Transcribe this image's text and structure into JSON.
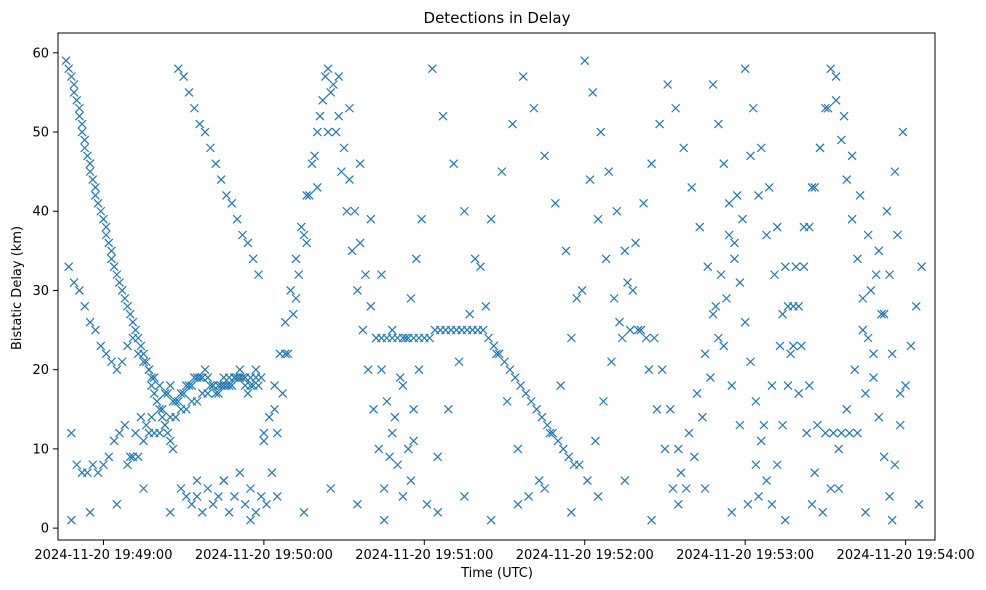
{
  "chart_data": {
    "type": "scatter",
    "title": "Detections in Delay",
    "xlabel": "Time (UTC)",
    "ylabel": "Bistatic Delay (km)",
    "x_ticks": [
      "2024-11-20 19:49:00",
      "2024-11-20 19:50:00",
      "2024-11-20 19:51:00",
      "2024-11-20 19:52:00",
      "2024-11-20 19:53:00",
      "2024-11-20 19:54:00"
    ],
    "x_tick_values": [
      0,
      60,
      120,
      180,
      240,
      300
    ],
    "xlim": [
      "2024-11-20 19:48:43",
      "2024-11-20 19:54:12"
    ],
    "xlim_seconds_from_first_tick": [
      -17,
      311
    ],
    "y_ticks": [
      0,
      10,
      20,
      30,
      40,
      50,
      60
    ],
    "ylim": [
      -1.5,
      62.5
    ],
    "marker": "x",
    "color": "#1f77b4",
    "grid": false,
    "series": [
      {
        "x_seconds_from_first_tick": [
          -14,
          -13,
          -12,
          -11,
          -11,
          -10,
          -9,
          -9,
          -8,
          -8,
          -7,
          -7,
          -6,
          -5,
          -5,
          -4,
          -3,
          -3,
          -2,
          -1,
          0,
          1,
          1,
          2,
          3,
          3,
          4,
          5,
          6,
          7,
          8,
          9,
          10,
          11,
          12,
          13,
          14,
          15,
          16,
          17,
          18,
          18,
          19,
          20,
          21,
          22,
          23,
          24,
          25,
          26,
          -12,
          -10,
          -8,
          -6,
          -4,
          -2,
          0,
          2,
          4,
          6,
          8,
          10,
          12,
          14,
          16,
          18,
          20,
          22,
          24,
          26,
          -13,
          -11,
          -9,
          -7,
          -5,
          -3,
          -1,
          1,
          3,
          5,
          7,
          9,
          11,
          13,
          15,
          17,
          19,
          21,
          23,
          25,
          27,
          28,
          29,
          30,
          31,
          32,
          33,
          34,
          35,
          36,
          37,
          38,
          39,
          40,
          41,
          42,
          43,
          44,
          45,
          46,
          47,
          48,
          49,
          50,
          51,
          52,
          53,
          54,
          55,
          56,
          57,
          58,
          59,
          28,
          30,
          32,
          34,
          36,
          38,
          40,
          42,
          44,
          46,
          48,
          50,
          52,
          54,
          56,
          58,
          29,
          31,
          33,
          35,
          37,
          39,
          41,
          43,
          45,
          47,
          49,
          51,
          53,
          55,
          57,
          59,
          60,
          62,
          64,
          66,
          68,
          70,
          72,
          74,
          76,
          78,
          80,
          82,
          84,
          86,
          88,
          90,
          92,
          94,
          96,
          98,
          100,
          102,
          104,
          106,
          108,
          110,
          112,
          114,
          116,
          118,
          61,
          63,
          65,
          67,
          69,
          71,
          73,
          75,
          77,
          79,
          81,
          83,
          85,
          87,
          89,
          91,
          93,
          95,
          97,
          99,
          101,
          103,
          105,
          107,
          109,
          111,
          113,
          115,
          117,
          119,
          60,
          64,
          68,
          72,
          76,
          80,
          84,
          88,
          92,
          96,
          100,
          104,
          108,
          112,
          116,
          102,
          104,
          106,
          108,
          110,
          112,
          114,
          116,
          118,
          120,
          122,
          124,
          126,
          128,
          130,
          132,
          134,
          136,
          138,
          140,
          142,
          144,
          146,
          148,
          150,
          152,
          154,
          156,
          158,
          160,
          162,
          164,
          166,
          168,
          170,
          172,
          174,
          176,
          178,
          121,
          125,
          129,
          133,
          137,
          141,
          145,
          149,
          153,
          157,
          161,
          165,
          169,
          173,
          177,
          123,
          127,
          131,
          135,
          139,
          143,
          147,
          151,
          155,
          159,
          163,
          167,
          171,
          175,
          179,
          180,
          183,
          186,
          189,
          192,
          195,
          198,
          201,
          204,
          207,
          210,
          213,
          216,
          219,
          222,
          225,
          228,
          231,
          234,
          237,
          181,
          184,
          187,
          190,
          193,
          196,
          199,
          202,
          205,
          208,
          211,
          214,
          217,
          220,
          223,
          226,
          229,
          232,
          235,
          238,
          182,
          185,
          188,
          191,
          194,
          197,
          200,
          203,
          206,
          209,
          212,
          215,
          218,
          221,
          224,
          227,
          230,
          233,
          236,
          239,
          240,
          243,
          246,
          249,
          252,
          255,
          258,
          261,
          264,
          267,
          270,
          273,
          276,
          279,
          282,
          285,
          288,
          291,
          294,
          297,
          241,
          244,
          247,
          250,
          253,
          256,
          259,
          262,
          265,
          268,
          271,
          274,
          277,
          280,
          283,
          286,
          289,
          292,
          295,
          298,
          242,
          245,
          248,
          251,
          254,
          257,
          260,
          263,
          266,
          269,
          272,
          275,
          278,
          281,
          284,
          287,
          290,
          293,
          296,
          299,
          9,
          11,
          13,
          15,
          17,
          19,
          21,
          23,
          25,
          27,
          29,
          31,
          33,
          35,
          37,
          39,
          41,
          43,
          45,
          47,
          49,
          51,
          53,
          55,
          57,
          228,
          230,
          232,
          234,
          236,
          238,
          240,
          242,
          244,
          246,
          248,
          250,
          252,
          254,
          256,
          258,
          260,
          262,
          264,
          266,
          268,
          270,
          272,
          274,
          276,
          278,
          280,
          282,
          284,
          286,
          288,
          290,
          292,
          294,
          296,
          298,
          300,
          302,
          304,
          306,
          -12,
          -5,
          5,
          15,
          25,
          35,
          45,
          55,
          65,
          75,
          85,
          95,
          105,
          115,
          125,
          135,
          145,
          155,
          165,
          175,
          185,
          195,
          205,
          215,
          225,
          235,
          245,
          255,
          265,
          275,
          285,
          295,
          305
        ],
        "y": [
          59,
          58,
          57,
          56,
          55,
          54,
          53,
          52,
          51,
          50,
          49,
          48,
          47,
          46,
          45,
          44,
          43,
          42,
          41,
          40,
          39,
          38,
          37,
          36,
          35,
          34,
          33,
          32,
          31,
          30,
          29,
          28,
          27,
          26,
          25,
          24,
          23,
          22,
          21,
          20,
          19,
          18,
          17,
          16,
          15,
          14,
          13,
          12,
          11,
          10,
          12,
          8,
          7,
          7,
          8,
          7,
          8,
          9,
          11,
          12,
          13,
          9,
          12,
          14,
          13,
          14,
          16,
          15,
          17,
          16,
          33,
          31,
          30,
          28,
          26,
          25,
          23,
          22,
          21,
          20,
          21,
          23,
          24,
          22,
          21,
          20,
          19,
          18,
          17,
          18,
          16,
          16,
          17,
          17,
          18,
          18,
          18,
          19,
          19,
          19,
          19,
          20,
          19,
          18,
          18,
          17,
          17,
          18,
          18,
          18,
          18,
          18,
          19,
          19,
          19,
          19,
          18,
          17,
          18,
          18,
          19,
          18,
          19,
          58,
          57,
          55,
          53,
          51,
          50,
          48,
          46,
          44,
          42,
          41,
          39,
          37,
          36,
          34,
          32,
          5,
          4,
          3,
          6,
          2,
          5,
          3,
          4,
          6,
          2,
          4,
          7,
          3,
          5,
          2,
          4,
          11,
          14,
          18,
          22,
          26,
          30,
          34,
          38,
          42,
          46,
          50,
          54,
          58,
          56,
          52,
          48,
          44,
          40,
          36,
          32,
          28,
          24,
          20,
          16,
          12,
          8,
          4,
          10,
          15,
          20,
          3,
          7,
          12,
          17,
          22,
          27,
          32,
          37,
          42,
          47,
          52,
          57,
          55,
          50,
          45,
          40,
          35,
          30,
          25,
          20,
          15,
          10,
          5,
          9,
          14,
          19,
          24,
          29,
          34,
          39,
          12,
          15,
          22,
          29,
          36,
          43,
          50,
          57,
          53,
          46,
          39,
          32,
          25,
          18,
          11,
          24,
          24,
          24,
          24,
          24,
          24,
          24,
          24,
          24,
          24,
          24,
          25,
          25,
          25,
          25,
          25,
          25,
          25,
          25,
          25,
          25,
          24,
          23,
          22,
          21,
          20,
          19,
          18,
          17,
          16,
          15,
          14,
          13,
          12,
          11,
          10,
          9,
          8,
          8,
          3,
          9,
          15,
          21,
          27,
          33,
          39,
          45,
          51,
          57,
          53,
          47,
          41,
          35,
          29,
          58,
          52,
          46,
          40,
          34,
          28,
          22,
          16,
          10,
          4,
          6,
          12,
          18,
          24,
          30,
          59,
          55,
          50,
          45,
          40,
          35,
          30,
          25,
          20,
          15,
          10,
          5,
          7,
          12,
          17,
          22,
          27,
          32,
          37,
          42,
          6,
          11,
          16,
          21,
          26,
          31,
          36,
          41,
          46,
          51,
          56,
          53,
          48,
          43,
          38,
          33,
          28,
          23,
          18,
          13,
          44,
          39,
          34,
          29,
          24,
          25,
          25,
          24,
          24,
          20,
          15,
          10,
          5,
          9,
          14,
          19,
          24,
          29,
          34,
          39,
          58,
          53,
          48,
          43,
          38,
          33,
          28,
          23,
          18,
          13,
          12,
          12,
          12,
          12,
          12,
          17,
          22,
          27,
          32,
          37,
          3,
          8,
          13,
          18,
          23,
          28,
          33,
          38,
          43,
          48,
          53,
          57,
          52,
          47,
          42,
          37,
          32,
          27,
          22,
          17,
          47,
          42,
          37,
          32,
          27,
          22,
          17,
          12,
          7,
          2,
          5,
          10,
          15,
          20,
          25,
          30,
          35,
          40,
          45,
          50,
          8,
          9,
          9,
          11,
          12,
          12,
          12,
          13,
          14,
          14,
          15,
          15,
          16,
          16,
          17,
          17,
          18,
          18,
          19,
          19,
          19,
          20,
          19,
          19,
          20,
          56,
          51,
          46,
          41,
          36,
          31,
          26,
          21,
          16,
          11,
          6,
          3,
          8,
          13,
          18,
          23,
          28,
          33,
          38,
          43,
          48,
          53,
          58,
          54,
          49,
          44,
          39,
          34,
          29,
          24,
          19,
          14,
          9,
          4,
          8,
          13,
          18,
          23,
          28,
          33,
          1,
          2,
          3,
          5,
          2,
          4,
          6,
          1,
          4,
          2,
          5,
          3,
          1,
          6,
          2,
          4,
          1,
          3,
          5,
          2,
          4,
          6,
          1,
          3,
          5,
          2,
          4,
          1,
          3,
          5,
          2,
          1,
          3
        ]
      }
    ]
  }
}
